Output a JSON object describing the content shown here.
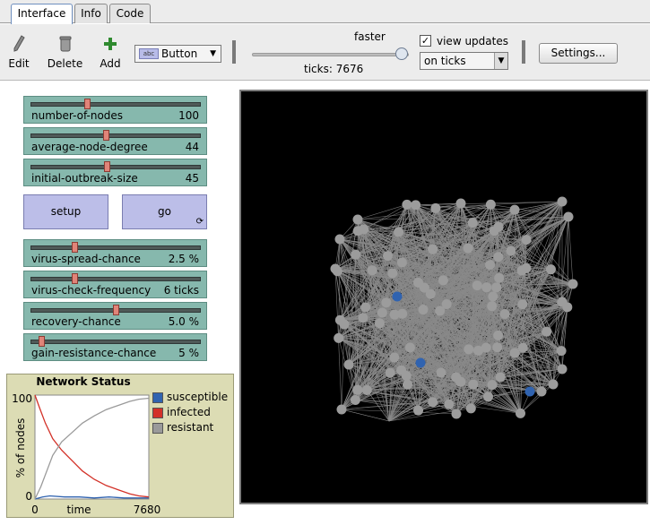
{
  "tabs": [
    {
      "label": "Interface",
      "active": true
    },
    {
      "label": "Info",
      "active": false
    },
    {
      "label": "Code",
      "active": false
    }
  ],
  "toolbar": {
    "edit_label": "Edit",
    "delete_label": "Delete",
    "add_label": "Add",
    "widget_type": "Button",
    "speed_label": "faster",
    "speed_fraction": 0.98,
    "ticks_text": "ticks: 7676",
    "view_updates_label": "view updates",
    "view_updates_checked": true,
    "update_mode": "on ticks",
    "settings_label": "Settings..."
  },
  "sliders": [
    {
      "name": "number-of-nodes",
      "value": "100",
      "fraction": 0.33
    },
    {
      "name": "average-node-degree",
      "value": "44",
      "fraction": 0.44
    },
    {
      "name": "initial-outbreak-size",
      "value": "45",
      "fraction": 0.45
    },
    {
      "name": "virus-spread-chance",
      "value": "2.5 %",
      "fraction": 0.25
    },
    {
      "name": "virus-check-frequency",
      "value": "6 ticks",
      "fraction": 0.25
    },
    {
      "name": "recovery-chance",
      "value": "5.0 %",
      "fraction": 0.5
    },
    {
      "name": "gain-resistance-chance",
      "value": "5 %",
      "fraction": 0.05
    }
  ],
  "buttons": {
    "setup_label": "setup",
    "go_label": "go",
    "go_loop_icon": "forever-icon"
  },
  "plot": {
    "title": "Network Status",
    "ylabel": "% of nodes",
    "xlabel": "time",
    "xmin_label": "0",
    "xmax_label": "7680",
    "ymax_label": "100",
    "ymin_label": "0",
    "legend": [
      {
        "name": "susceptible",
        "color": "#3063b0"
      },
      {
        "name": "infected",
        "color": "#d33128"
      },
      {
        "name": "resistant",
        "color": "#9a9a9a"
      }
    ]
  },
  "chart_data": {
    "type": "line",
    "title": "Network Status",
    "xlabel": "time",
    "ylabel": "% of nodes",
    "xlim": [
      0,
      7680
    ],
    "ylim": [
      0,
      100
    ],
    "legend": "right",
    "series": [
      {
        "name": "susceptible",
        "color": "#3063b0",
        "x": [
          0,
          500,
          1000,
          2000,
          3000,
          4000,
          5000,
          6000,
          7000,
          7676
        ],
        "y": [
          0,
          2,
          3,
          2,
          2,
          1,
          2,
          1,
          1,
          1
        ]
      },
      {
        "name": "infected",
        "color": "#d33128",
        "x": [
          0,
          300,
          700,
          1200,
          1800,
          2500,
          3200,
          4000,
          4800,
          5600,
          6400,
          7000,
          7676
        ],
        "y": [
          100,
          88,
          73,
          58,
          47,
          37,
          27,
          19,
          13,
          9,
          5,
          3,
          2
        ]
      },
      {
        "name": "resistant",
        "color": "#9a9a9a",
        "x": [
          0,
          400,
          800,
          1200,
          1800,
          2500,
          3200,
          4000,
          4800,
          5600,
          6400,
          7000,
          7676
        ],
        "y": [
          0,
          12,
          27,
          42,
          55,
          64,
          73,
          80,
          86,
          90,
          94,
          96,
          97
        ]
      }
    ]
  },
  "colors": {
    "slider_bg": "#86b8ad",
    "button_bg": "#bcbee8",
    "plot_bg": "#dcdcb4",
    "view_bg": "#000000",
    "link": "#8a8a8a",
    "node_resistant": "#9c9c9c",
    "node_susceptible": "#3063b0"
  }
}
